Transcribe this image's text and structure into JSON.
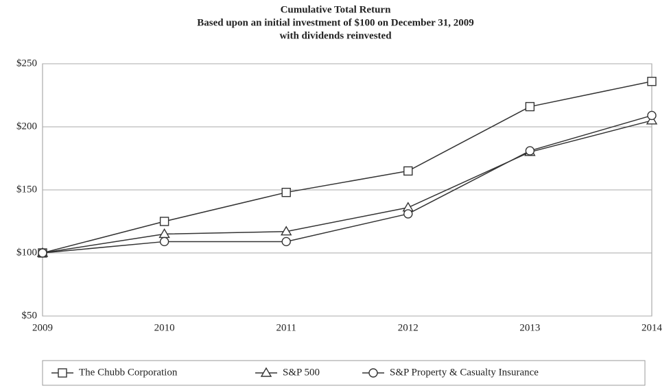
{
  "chart_data": {
    "type": "line",
    "title": "Cumulative Total Return",
    "subtitle": [
      "Based upon an initial investment of $100 on December 31, 2009",
      "with dividends reinvested"
    ],
    "categories": [
      "2009",
      "2010",
      "2011",
      "2012",
      "2013",
      "2014"
    ],
    "series": [
      {
        "name": "The Chubb Corporation",
        "color": "#333333",
        "marker": "square",
        "values": [
          100,
          125,
          148,
          165,
          216,
          236
        ]
      },
      {
        "name": "S&P 500",
        "color": "#333333",
        "marker": "triangle",
        "values": [
          100,
          115,
          117,
          136,
          180,
          205
        ]
      },
      {
        "name": "S&P Property & Casualty Insurance",
        "color": "#333333",
        "marker": "circle",
        "values": [
          100,
          109,
          109,
          131,
          181,
          209
        ]
      }
    ],
    "ylim": [
      50,
      250
    ],
    "yticks": [
      {
        "value": 50,
        "label": "$50"
      },
      {
        "value": 100,
        "label": "$100"
      },
      {
        "value": 150,
        "label": "$150"
      },
      {
        "value": 200,
        "label": "$200"
      },
      {
        "value": 250,
        "label": "$250"
      }
    ],
    "grid": true,
    "legend": "bottom"
  }
}
